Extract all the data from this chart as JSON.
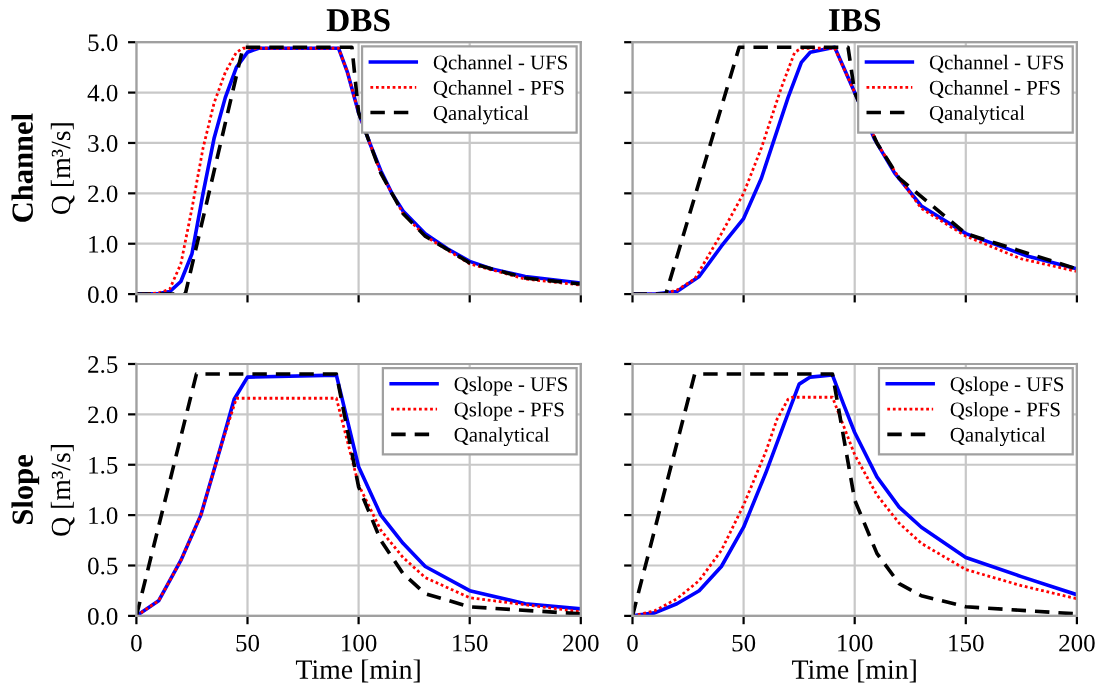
{
  "chart_data": [
    {
      "type": "line",
      "title": "DBS",
      "ylabel": "Q [m³/s]",
      "annotations": [
        "Channel"
      ],
      "xlim": [
        0,
        200
      ],
      "xticks": [
        0,
        50,
        100,
        150,
        200
      ],
      "ylim": [
        0,
        5
      ],
      "yticks": [
        {
          "value": 0,
          "label": "0.0"
        },
        {
          "value": 1,
          "label": "1.0"
        },
        {
          "value": 2,
          "label": "2.0"
        },
        {
          "value": 3,
          "label": "3.0"
        },
        {
          "value": 4,
          "label": "4.0"
        },
        {
          "value": 5,
          "label": "5.0"
        }
      ],
      "grid": true,
      "legend": "top right",
      "tick_labels": "y",
      "series": [
        {
          "name": "Qchannel - UFS",
          "color": "#0000ff",
          "line_style": "solid",
          "x": [
            0,
            10,
            15,
            20,
            25,
            30,
            35,
            40,
            45,
            50,
            55,
            91,
            95,
            100,
            105,
            110,
            115,
            120,
            130,
            140,
            150,
            160,
            175,
            200
          ],
          "values": [
            0,
            0.01,
            0.05,
            0.25,
            0.8,
            2.0,
            3.1,
            3.9,
            4.5,
            4.8,
            4.88,
            4.88,
            4.4,
            3.6,
            3.0,
            2.45,
            2.0,
            1.65,
            1.2,
            0.9,
            0.65,
            0.5,
            0.35,
            0.22
          ]
        },
        {
          "name": "Qchannel - PFS",
          "color": "#ff0000",
          "line_style": "dotted",
          "x": [
            0,
            10,
            15,
            20,
            25,
            30,
            35,
            40,
            45,
            48,
            91,
            95,
            100,
            110,
            120,
            130,
            150,
            175,
            200
          ],
          "values": [
            0,
            0.02,
            0.1,
            0.6,
            1.7,
            2.9,
            3.8,
            4.4,
            4.8,
            4.88,
            4.88,
            4.4,
            3.6,
            2.4,
            1.6,
            1.15,
            0.6,
            0.3,
            0.18
          ]
        },
        {
          "name": "Qanalytical",
          "color": "#000000",
          "line_style": "dashed",
          "x": [
            0,
            22,
            48,
            97,
            100,
            110,
            120,
            130,
            150,
            175,
            200
          ],
          "values": [
            0,
            0,
            4.9,
            4.9,
            3.6,
            2.4,
            1.6,
            1.15,
            0.62,
            0.32,
            0.2
          ]
        }
      ]
    },
    {
      "type": "line",
      "title": "IBS",
      "xlim": [
        0,
        200
      ],
      "xticks": [
        0,
        50,
        100,
        150,
        200
      ],
      "ylim": [
        0,
        5
      ],
      "yticks": [
        {
          "value": 0,
          "label": null
        },
        {
          "value": 1,
          "label": null
        },
        {
          "value": 2,
          "label": null
        },
        {
          "value": 3,
          "label": null
        },
        {
          "value": 4,
          "label": null
        },
        {
          "value": 5,
          "label": null
        }
      ],
      "grid": true,
      "legend": "top right",
      "tick_labels": false,
      "series": [
        {
          "name": "Qchannel - UFS",
          "color": "#0000ff",
          "line_style": "solid",
          "x": [
            0,
            10,
            20,
            30,
            40,
            50,
            58,
            70,
            76,
            80,
            91,
            100,
            109,
            118,
            130,
            150,
            178,
            200
          ],
          "values": [
            0,
            0,
            0.05,
            0.35,
            0.95,
            1.5,
            2.3,
            3.9,
            4.6,
            4.8,
            4.9,
            4.0,
            3.07,
            2.4,
            1.75,
            1.2,
            0.75,
            0.5
          ]
        },
        {
          "name": "Qchannel - PFS",
          "color": "#ff0000",
          "line_style": "dotted",
          "x": [
            0,
            13,
            20,
            28,
            40,
            50,
            58,
            67,
            73,
            76,
            91,
            100,
            110,
            120,
            130,
            150,
            175,
            200
          ],
          "values": [
            0,
            0,
            0.08,
            0.3,
            1.2,
            2.0,
            2.9,
            4.1,
            4.8,
            4.88,
            4.88,
            4.0,
            3.0,
            2.3,
            1.7,
            1.15,
            0.7,
            0.45
          ]
        },
        {
          "name": "Qanalytical",
          "color": "#000000",
          "line_style": "dashed",
          "x": [
            0,
            15,
            48,
            97,
            100,
            110,
            120,
            150,
            200
          ],
          "values": [
            0,
            0,
            4.9,
            4.9,
            4.0,
            3.0,
            2.3,
            1.2,
            0.5
          ]
        }
      ]
    },
    {
      "type": "line",
      "xlabel": "Time [min]",
      "ylabel": "Q [m³/s]",
      "annotations": [
        "Slope"
      ],
      "xlim": [
        0,
        200
      ],
      "xticks": [
        0,
        50,
        100,
        150,
        200
      ],
      "ylim": [
        0,
        2.5
      ],
      "yticks": [
        {
          "value": 0,
          "label": "0.0"
        },
        {
          "value": 0.5,
          "label": "0.5"
        },
        {
          "value": 1,
          "label": "1.0"
        },
        {
          "value": 1.5,
          "label": "1.5"
        },
        {
          "value": 2,
          "label": "2.0"
        },
        {
          "value": 2.5,
          "label": "2.5"
        }
      ],
      "grid": true,
      "legend": "top right",
      "series": [
        {
          "name": "Qslope - UFS",
          "color": "#0000ff",
          "line_style": "solid",
          "x": [
            0,
            10,
            20,
            29,
            38,
            44,
            50,
            90,
            100,
            110,
            120,
            130,
            150,
            175,
            200
          ],
          "values": [
            0,
            0.15,
            0.55,
            1.0,
            1.68,
            2.15,
            2.37,
            2.39,
            1.48,
            1.0,
            0.72,
            0.49,
            0.25,
            0.12,
            0.07
          ]
        },
        {
          "name": "Qslope - PFS",
          "color": "#ff0000",
          "line_style": "dotted",
          "x": [
            0,
            10,
            20,
            29,
            38,
            45,
            90,
            100,
            110,
            120,
            130,
            150,
            200
          ],
          "values": [
            0,
            0.15,
            0.55,
            1.0,
            1.68,
            2.16,
            2.16,
            1.3,
            0.85,
            0.58,
            0.38,
            0.18,
            0.04
          ]
        },
        {
          "name": "Qanalytical",
          "color": "#000000",
          "line_style": "dashed",
          "x": [
            0,
            27,
            90,
            100,
            110,
            120,
            130,
            150,
            200
          ],
          "values": [
            0,
            2.4,
            2.4,
            1.28,
            0.75,
            0.42,
            0.22,
            0.09,
            0.02
          ]
        }
      ]
    },
    {
      "type": "line",
      "xlabel": "Time [min]",
      "xlim": [
        0,
        200
      ],
      "xticks": [
        0,
        50,
        100,
        150,
        200
      ],
      "ylim": [
        0,
        2.5
      ],
      "yticks": [
        {
          "value": 0,
          "label": null
        },
        {
          "value": 0.5,
          "label": null
        },
        {
          "value": 1,
          "label": null
        },
        {
          "value": 1.5,
          "label": null
        },
        {
          "value": 2,
          "label": null
        },
        {
          "value": 2.5,
          "label": null
        }
      ],
      "grid": true,
      "legend": "top right",
      "tick_labels": "x",
      "series": [
        {
          "name": "Qslope - UFS",
          "color": "#0000ff",
          "line_style": "solid",
          "x": [
            0,
            10,
            20,
            30,
            40,
            50,
            60,
            70,
            75,
            80,
            90,
            95,
            100,
            110,
            120,
            130,
            150,
            175,
            200
          ],
          "values": [
            0,
            0.03,
            0.12,
            0.25,
            0.49,
            0.88,
            1.42,
            2.01,
            2.3,
            2.37,
            2.39,
            2.1,
            1.82,
            1.38,
            1.08,
            0.88,
            0.58,
            0.39,
            0.21
          ]
        },
        {
          "name": "Qslope - PFS",
          "color": "#ff0000",
          "line_style": "dotted",
          "x": [
            0,
            10,
            20,
            30,
            40,
            50,
            60,
            65,
            70,
            72,
            90,
            100,
            110,
            120,
            130,
            150,
            175,
            200
          ],
          "values": [
            0,
            0.05,
            0.17,
            0.35,
            0.65,
            1.1,
            1.63,
            1.95,
            2.15,
            2.17,
            2.17,
            1.6,
            1.2,
            0.92,
            0.72,
            0.46,
            0.3,
            0.17
          ]
        },
        {
          "name": "Qanalytical",
          "color": "#000000",
          "line_style": "dashed",
          "x": [
            0,
            28,
            90,
            100,
            110,
            120,
            130,
            150,
            200
          ],
          "values": [
            0,
            2.4,
            2.4,
            1.15,
            0.62,
            0.32,
            0.2,
            0.09,
            0.02
          ]
        }
      ]
    }
  ]
}
